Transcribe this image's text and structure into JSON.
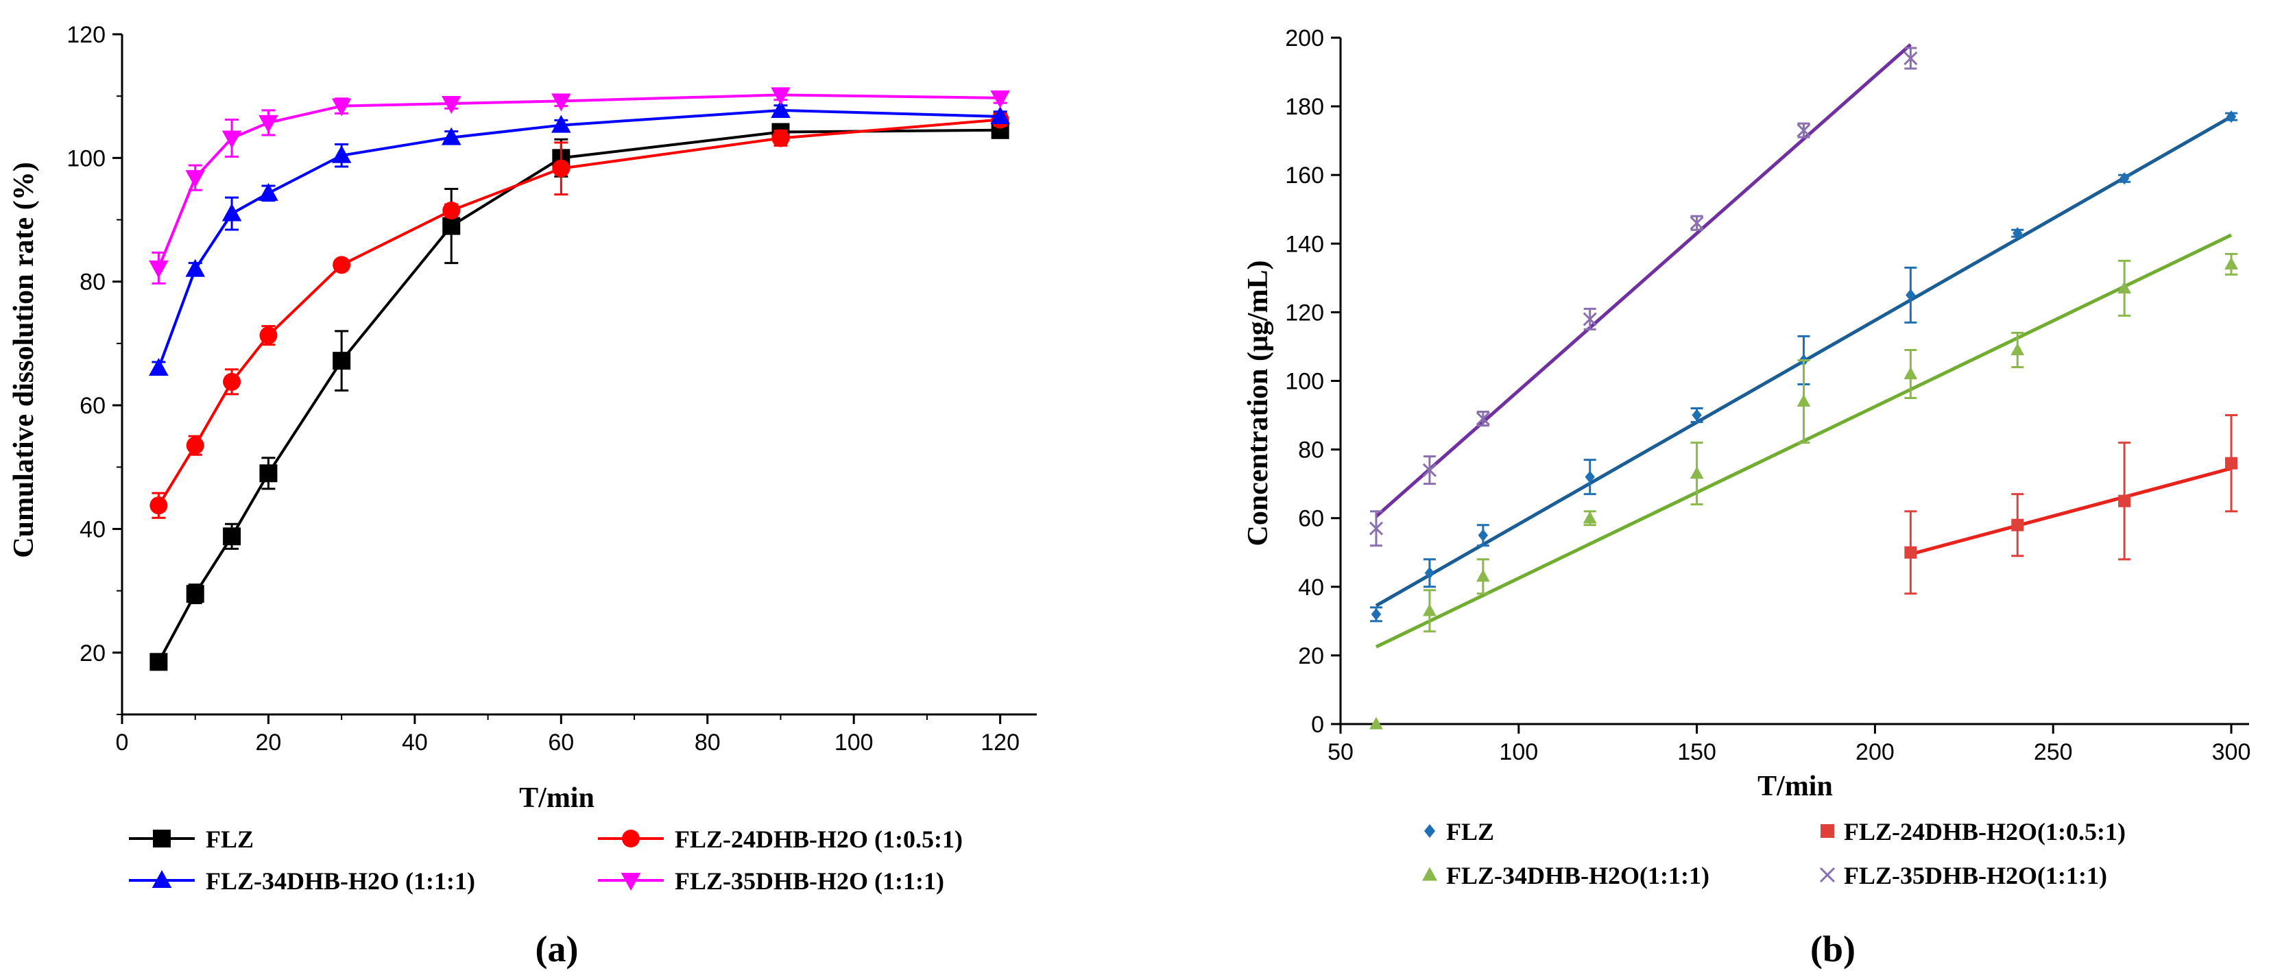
{
  "chart_data": [
    {
      "id": "a",
      "type": "line",
      "panel_label": "(a)",
      "title": "",
      "xlabel": "T/min",
      "ylabel": "Cumulative dissolution rate (%)",
      "xlim": [
        0,
        125
      ],
      "ylim": [
        10,
        120
      ],
      "xticks": [
        0,
        20,
        40,
        60,
        80,
        100,
        120
      ],
      "yticks": [
        20,
        40,
        60,
        80,
        100,
        120
      ],
      "series": [
        {
          "name": "FLZ",
          "color": "#000000",
          "marker": "square",
          "x": [
            5,
            10,
            15,
            20,
            30,
            45,
            60,
            90,
            120
          ],
          "values": [
            18.5,
            29.5,
            38.8,
            49.0,
            67.2,
            89.0,
            100.0,
            104.2,
            104.5
          ],
          "errors": [
            0.8,
            1.5,
            2.0,
            2.5,
            4.8,
            6.0,
            3.0,
            1.0,
            1.0
          ]
        },
        {
          "name": "FLZ-24DHB-H2O (1:0.5:1)",
          "color": "#ff0000",
          "marker": "circle",
          "x": [
            5,
            10,
            15,
            20,
            30,
            45,
            60,
            90,
            120
          ],
          "values": [
            43.8,
            53.5,
            63.8,
            71.3,
            82.7,
            91.5,
            98.3,
            103.2,
            106.2
          ],
          "errors": [
            2.0,
            1.5,
            2.0,
            1.5,
            0.8,
            1.0,
            4.2,
            1.2,
            1.0
          ]
        },
        {
          "name": "FLZ-34DHB-H2O (1:1:1)",
          "color": "#0000ff",
          "marker": "triangle-up",
          "x": [
            5,
            10,
            15,
            20,
            30,
            45,
            60,
            90,
            120
          ],
          "values": [
            66.0,
            82.0,
            91.0,
            94.3,
            100.4,
            103.3,
            105.3,
            107.7,
            106.7
          ],
          "errors": [
            1.0,
            1.0,
            2.6,
            1.2,
            1.8,
            1.0,
            0.8,
            0.8,
            0.8
          ]
        },
        {
          "name": "FLZ-35DHB-H2O (1:1:1)",
          "color": "#ff00ff",
          "marker": "triangle-down",
          "x": [
            5,
            10,
            15,
            20,
            30,
            45,
            60,
            90,
            120
          ],
          "values": [
            82.2,
            96.8,
            103.2,
            105.7,
            108.4,
            108.8,
            109.2,
            110.2,
            109.7
          ],
          "errors": [
            2.5,
            2.0,
            3.0,
            2.0,
            1.2,
            0.8,
            0.8,
            0.8,
            0.8
          ]
        }
      ],
      "legend": [
        {
          "label": "FLZ",
          "series": 0,
          "position": "row1-left"
        },
        {
          "label": "FLZ-24DHB-H2O (1:0.5:1)",
          "series": 1,
          "position": "row1-right"
        },
        {
          "label": "FLZ-34DHB-H2O (1:1:1)",
          "series": 2,
          "position": "row2-left"
        },
        {
          "label": "FLZ-35DHB-H2O (1:1:1)",
          "series": 3,
          "position": "row2-right"
        }
      ]
    },
    {
      "id": "b",
      "type": "scatter",
      "panel_label": "(b)",
      "title": "",
      "xlabel": "T/min",
      "ylabel": "Concentration (μg/mL)",
      "xlim": [
        50,
        305
      ],
      "ylim": [
        0,
        200
      ],
      "xticks": [
        50,
        100,
        150,
        200,
        250,
        300
      ],
      "yticks": [
        0,
        20,
        40,
        60,
        80,
        100,
        120,
        140,
        160,
        180,
        200
      ],
      "series": [
        {
          "name": "FLZ",
          "color": "#1f6fb5",
          "line_color": "#1b5e96",
          "marker": "diamond",
          "x": [
            60,
            75,
            90,
            120,
            150,
            180,
            210,
            240,
            270,
            300
          ],
          "values": [
            32,
            44,
            55,
            72,
            90,
            106,
            125,
            143,
            159,
            177
          ],
          "errors": [
            2,
            4,
            3,
            5,
            2,
            7,
            8,
            1,
            1,
            1
          ],
          "fit": [
            [
              60,
              34.5
            ],
            [
              300,
              177
            ]
          ]
        },
        {
          "name": "FLZ-24DHB-H2O(1:0.5:1)",
          "color": "#e0403a",
          "line_color": "#e8231c",
          "marker": "square",
          "x": [
            210,
            240,
            270,
            300
          ],
          "values": [
            50,
            58,
            65,
            76
          ],
          "errors": [
            12,
            9,
            17,
            14
          ],
          "fit": [
            [
              210,
              49.5
            ],
            [
              300,
              74.5
            ]
          ]
        },
        {
          "name": "FLZ-34DHB-H2O(1:1:1)",
          "color": "#8ab84a",
          "line_color": "#70ad30",
          "marker": "triangle-up",
          "x": [
            60,
            75,
            90,
            120,
            150,
            180,
            210,
            240,
            270,
            300
          ],
          "values": [
            0,
            33,
            43,
            60,
            73,
            94,
            102,
            109,
            127,
            134
          ],
          "errors": [
            0,
            6,
            5,
            2,
            9,
            12,
            7,
            5,
            8,
            3
          ],
          "fit": [
            [
              60,
              22.5
            ],
            [
              300,
              142.5
            ]
          ]
        },
        {
          "name": "FLZ-35DHB-H2O(1:1:1)",
          "color": "#8a6fb0",
          "line_color": "#7030a0",
          "marker": "x",
          "x": [
            60,
            75,
            90,
            120,
            150,
            180,
            210
          ],
          "values": [
            57,
            74,
            89,
            118,
            146,
            173,
            194
          ],
          "errors": [
            5,
            4,
            2,
            3,
            2,
            2,
            3
          ],
          "fit": [
            [
              60,
              60.5
            ],
            [
              210,
              198
            ]
          ]
        }
      ],
      "legend": [
        {
          "label": "FLZ",
          "series": 0,
          "position": "row1-left"
        },
        {
          "label": "FLZ-24DHB-H2O(1:0.5:1)",
          "series": 1,
          "position": "row1-right"
        },
        {
          "label": "FLZ-34DHB-H2O(1:1:1)",
          "series": 2,
          "position": "row2-left"
        },
        {
          "label": "FLZ-35DHB-H2O(1:1:1)",
          "series": 3,
          "position": "row2-right"
        }
      ]
    }
  ]
}
